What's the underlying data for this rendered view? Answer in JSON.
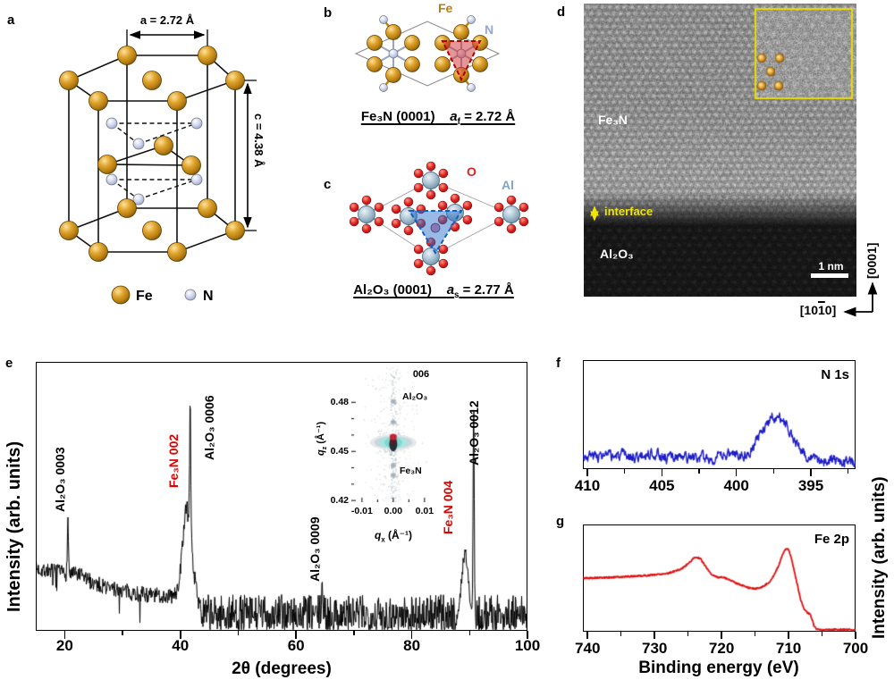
{
  "panel_letters": {
    "a": "a",
    "b": "b",
    "c": "c",
    "d": "d",
    "e": "e",
    "f": "f",
    "g": "g"
  },
  "panel_a": {
    "dim_a": "a = 2.72 Å",
    "dim_c": "c = 4.38 Å",
    "legend_fe": "Fe",
    "legend_n": "N",
    "colors": {
      "fe_atom": "#C8891A",
      "n_atom": "#B9C2E4"
    }
  },
  "panel_b": {
    "label_fe": "Fe",
    "label_n": "N",
    "caption_formula": "Fe₃N (0001)",
    "caption_sym": "a",
    "caption_sub": "f",
    "caption_val": "= 2.72 Å",
    "colors": {
      "fe_label": "#B97E10",
      "n_label": "#98A4D8",
      "triangle": "#C81E1E"
    }
  },
  "panel_c": {
    "label_o": "O",
    "label_al": "Al",
    "caption_formula": "Al₂O₃ (0001)",
    "caption_sym": "a",
    "caption_sub": "s",
    "caption_val": "= 2.77 Å",
    "colors": {
      "o_label": "#E02020",
      "al_label": "#7FA6C6",
      "triangle": "#1565C0"
    }
  },
  "panel_d": {
    "label_top": "Fe₃N",
    "label_interface": "interface",
    "label_bottom": "Al₂O₃",
    "scale_bar": "1 nm",
    "axis_up": "[0001]",
    "axis_left_parts": {
      "pre": "[10",
      "bar": "1",
      "post": "0]"
    },
    "colors": {
      "annotation_yellow": "#F0E400"
    }
  },
  "labels": {
    "xrd_xlabel": "2θ (degrees)",
    "xrd_ylabel": "Intensity (arb. units)",
    "xps_xlabel": "Binding energy (eV)",
    "xps_ylabel": "Intensity (arb. units)"
  },
  "chart_data": [
    {
      "id": "xrd",
      "type": "line",
      "panel": "e",
      "xlabel": "2θ (degrees)",
      "ylabel": "Intensity (arb. units)",
      "xlim": [
        15,
        100
      ],
      "xticks": [
        20,
        40,
        60,
        80,
        100
      ],
      "xticks_minor": [
        30,
        50,
        70,
        90
      ],
      "line_color": "#000000",
      "background_level": 0.13,
      "peaks": [
        {
          "label": "Al₂O₃ 0003",
          "two_theta": 20.55,
          "rel_height": 0.41,
          "width_deg": 0.1,
          "label_color": "#000000"
        },
        {
          "label": "Fe₃N 002",
          "two_theta": 41.15,
          "rel_height": 0.46,
          "width_deg": 0.75,
          "label_color": "#E00000"
        },
        {
          "label": "Al₂O₃ 0006",
          "two_theta": 41.7,
          "rel_height": 0.84,
          "width_deg": 0.1,
          "label_color": "#000000"
        },
        {
          "label": "Al₂O₃ 0009",
          "two_theta": 64.5,
          "rel_height": 0.2,
          "width_deg": 0.1,
          "label_color": "#000000"
        },
        {
          "label": "Fe₃N 004",
          "two_theta": 89.2,
          "rel_height": 0.3,
          "width_deg": 0.55,
          "label_color": "#E00000"
        },
        {
          "label": "Al₂O₃ 0012",
          "two_theta": 90.7,
          "rel_height": 0.84,
          "width_deg": 0.1,
          "label_color": "#000000"
        }
      ]
    },
    {
      "id": "rsm",
      "type": "heatmap",
      "panel": "e-inset",
      "title": "006",
      "xlabel_parts": {
        "sym": "q",
        "sub": "x",
        "unit": "(Å⁻¹)"
      },
      "ylabel_parts": {
        "sym": "q",
        "sub": "z",
        "unit": "(Å⁻¹)"
      },
      "xlim": [
        -0.0134,
        0.0129
      ],
      "ylim": [
        0.419,
        0.502
      ],
      "xticks": [
        -0.01,
        0.0,
        0.01
      ],
      "xticks_minor": [
        -0.005,
        0.005
      ],
      "yticks": [
        0.48,
        0.45,
        0.42
      ],
      "yticks_minor": [
        0.47,
        0.46,
        0.44,
        0.43
      ],
      "features": {
        "substrate_label": "Al₂O₃",
        "film_label": "Fe₃N",
        "main_spot": {
          "qx": 0.0,
          "qz": 0.4555
        },
        "substrate_spot": {
          "qx": 0.0,
          "qz": 0.4578
        },
        "satellites_qz": [
          0.4805,
          0.468,
          0.4415,
          0.4355
        ],
        "colors": {
          "diffuse_cyan": "#A8E6E0",
          "core_dark": "#233038",
          "substrate_red": "#C22438"
        }
      }
    },
    {
      "id": "xps_n1s",
      "type": "line",
      "panel": "f",
      "label": "N 1s",
      "xlim": [
        410.3,
        392.0
      ],
      "xticks": [
        410,
        405,
        400,
        395
      ],
      "xticks_minor": [
        407.5,
        402.5,
        397.5,
        392.5
      ],
      "line_color": "#1C1CC8",
      "baseline": 0.125,
      "baseline_slope": 0.0032,
      "noise_amplitude": 0.085,
      "peak": {
        "center": 397.35,
        "amplitude": 0.4,
        "sigma": 1.0
      },
      "minor_bumps": [
        {
          "center": 400.3,
          "amplitude": 0.05,
          "sigma": 0.45
        },
        {
          "center": 405.6,
          "amplitude": 0.04,
          "sigma": 0.35
        }
      ]
    },
    {
      "id": "xps_fe2p",
      "type": "line",
      "panel": "g",
      "label": "Fe 2p",
      "xlabel": "Binding energy (eV)",
      "xlim": [
        740.7,
        700
      ],
      "xticks": [
        740,
        730,
        720,
        710,
        700
      ],
      "xticks_minor": [
        735,
        725,
        715,
        705
      ],
      "line_color": "#E01010",
      "curve_points": [
        [
          740,
          0.5
        ],
        [
          737,
          0.505
        ],
        [
          734,
          0.515
        ],
        [
          731,
          0.525
        ],
        [
          728,
          0.545
        ],
        [
          726,
          0.585
        ],
        [
          724.8,
          0.645
        ],
        [
          724,
          0.695
        ],
        [
          723.2,
          0.685
        ],
        [
          722.3,
          0.6
        ],
        [
          721.5,
          0.535
        ],
        [
          720.5,
          0.505
        ],
        [
          719.8,
          0.51
        ],
        [
          719,
          0.49
        ],
        [
          717.5,
          0.445
        ],
        [
          716,
          0.41
        ],
        [
          715,
          0.4
        ],
        [
          714,
          0.415
        ],
        [
          713,
          0.455
        ],
        [
          712.2,
          0.52
        ],
        [
          711.5,
          0.615
        ],
        [
          710.9,
          0.72
        ],
        [
          710.4,
          0.775
        ],
        [
          710,
          0.765
        ],
        [
          709.6,
          0.69
        ],
        [
          709.2,
          0.58
        ],
        [
          708.7,
          0.44
        ],
        [
          708.2,
          0.3
        ],
        [
          707.7,
          0.21
        ],
        [
          707.2,
          0.175
        ],
        [
          706.8,
          0.165
        ],
        [
          706.5,
          0.12
        ],
        [
          706.2,
          0.055
        ],
        [
          705.8,
          0.025
        ],
        [
          705,
          0.018
        ],
        [
          703,
          0.02
        ],
        [
          700,
          0.018
        ]
      ]
    }
  ]
}
